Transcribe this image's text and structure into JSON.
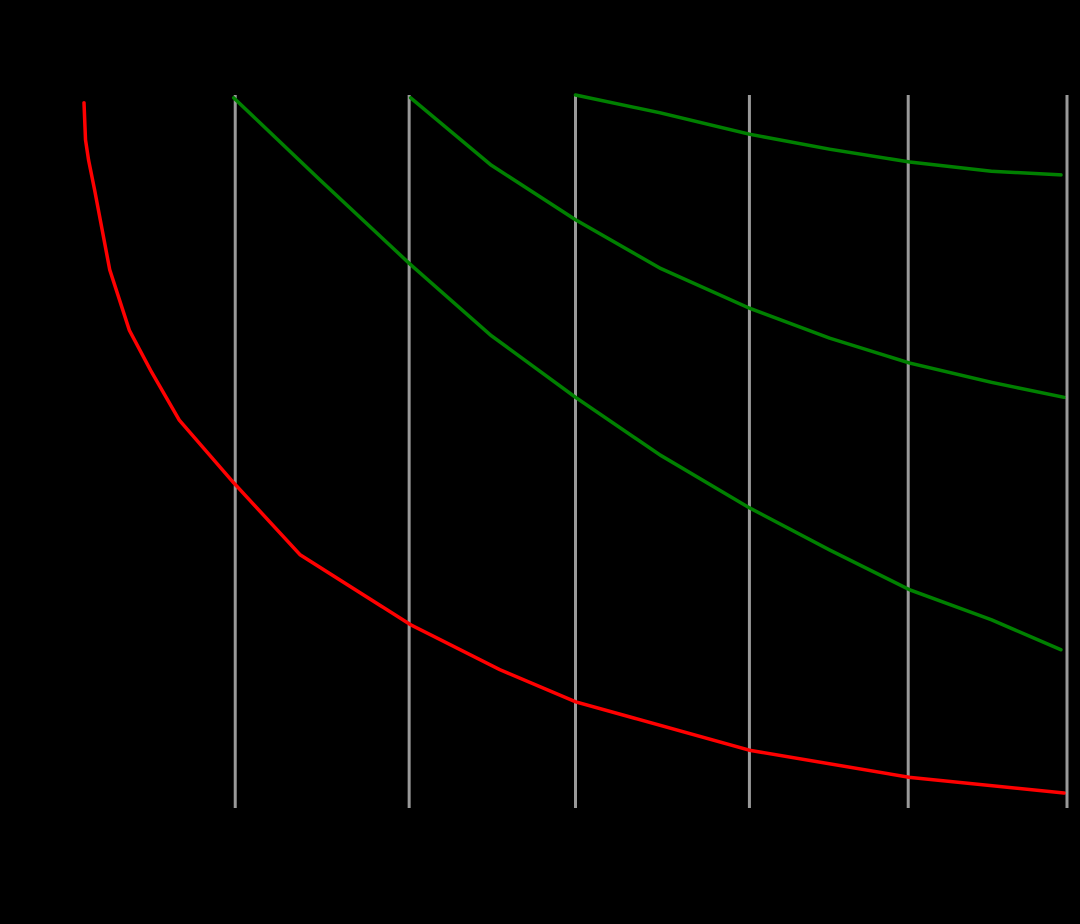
{
  "chart_data": {
    "type": "line",
    "xlim": [
      0,
      6.5
    ],
    "ylim": [
      0,
      10
    ],
    "xticks": [
      1,
      2.15,
      3.25,
      4.4,
      5.45,
      6.5
    ],
    "grid": true,
    "grid_color": "#999999",
    "series": [
      {
        "color": "#ff0000",
        "x": [
          0,
          0.01,
          0.03,
          0.07,
          0.17,
          0.3,
          0.44,
          0.63,
          0.99,
          1.43,
          2.16,
          2.75,
          3.25,
          4.4,
          5.46,
          6.48
        ],
        "values": [
          9.89,
          9.37,
          9.09,
          8.67,
          7.55,
          6.7,
          6.14,
          5.44,
          4.56,
          3.55,
          2.57,
          1.94,
          1.49,
          0.81,
          0.43,
          0.21
        ]
      },
      {
        "color": "#008000",
        "x": [
          0.99,
          1.56,
          2.16,
          2.69,
          3.25,
          3.81,
          4.4,
          4.93,
          5.46,
          6.0,
          6.46
        ],
        "values": [
          9.96,
          8.81,
          7.62,
          6.63,
          5.76,
          4.95,
          4.21,
          3.62,
          3.06,
          2.64,
          2.22
        ]
      },
      {
        "color": "#008000",
        "x": [
          2.16,
          2.69,
          3.25,
          3.81,
          4.4,
          4.93,
          5.46,
          6.0,
          6.48
        ],
        "values": [
          9.96,
          9.02,
          8.25,
          7.57,
          7.01,
          6.59,
          6.24,
          5.97,
          5.76
        ]
      },
      {
        "color": "#008000",
        "x": [
          3.25,
          3.81,
          4.4,
          4.93,
          5.46,
          6.0,
          6.46
        ],
        "values": [
          10,
          9.75,
          9.45,
          9.24,
          9.06,
          8.93,
          8.88
        ]
      }
    ]
  }
}
